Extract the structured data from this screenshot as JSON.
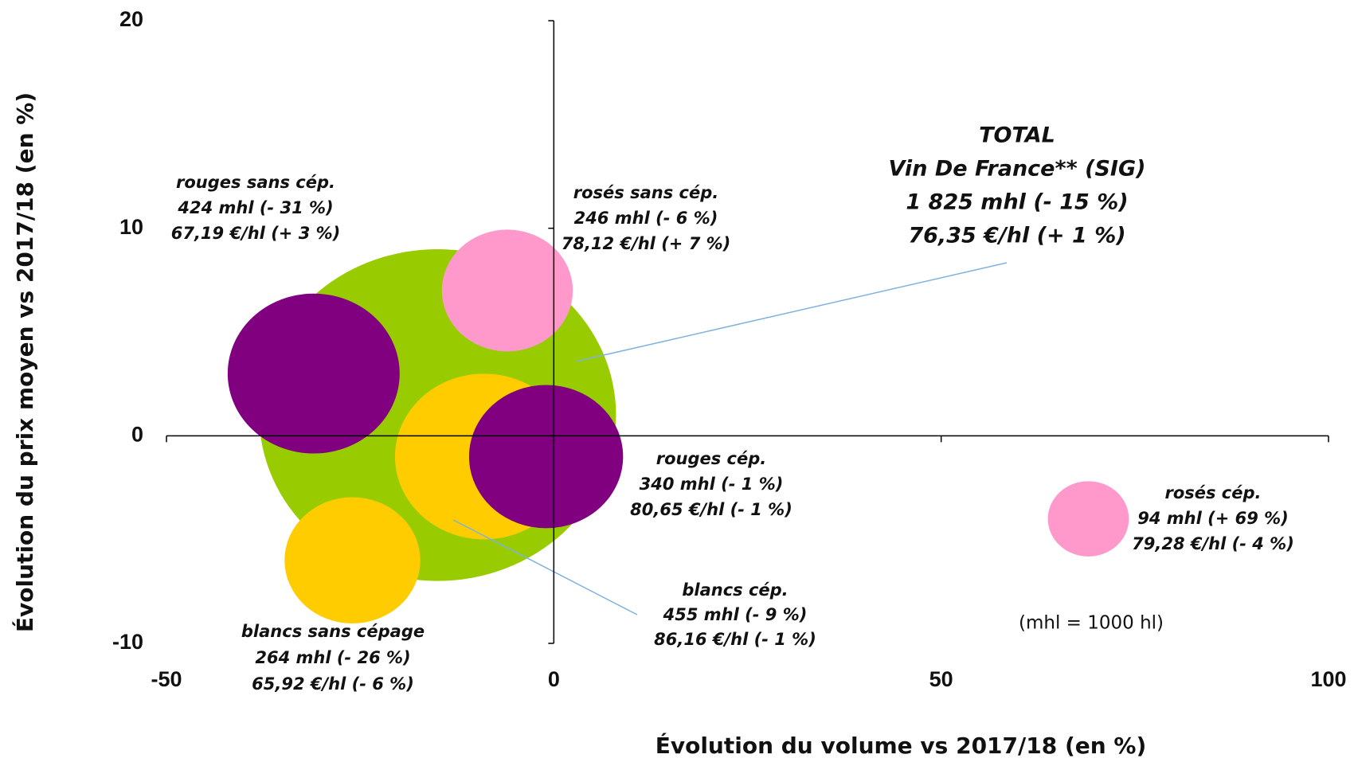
{
  "chart_data": {
    "type": "bubble",
    "xlabel": "Évolution du volume vs 2017/18 (en %)",
    "ylabel": "Évolution du prix moyen vs 2017/18 (en %)",
    "xlim": [
      -50,
      100
    ],
    "xticks": [
      -50,
      0,
      50,
      100
    ],
    "ylim": [
      -10,
      20
    ],
    "yticks": [
      -10,
      0,
      10,
      20
    ],
    "annotation": "(mhl = 1000 hl)",
    "points": [
      {
        "name": "TOTAL",
        "subname": "Vin De France** (SIG)",
        "color": "#99cc00",
        "x": -15,
        "y": 1,
        "size": 1825,
        "volume_label": "1 825 mhl (- 15 %)",
        "price_label": "76,35 €/hl (+ 1 %)"
      },
      {
        "name": "rosés sans cép.",
        "color": "#ff99cc",
        "x": -6,
        "y": 7,
        "size": 246,
        "volume_label": "246 mhl (- 6 %)",
        "price_label": "78,12  €/hl (+ 7 %)"
      },
      {
        "name": "rouges sans cép.",
        "color": "#800080",
        "x": -31,
        "y": 3,
        "size": 424,
        "volume_label": "424 mhl (- 31 %)",
        "price_label": "67,19 €/hl (+ 3 %)"
      },
      {
        "name": "blancs cép.",
        "color": "#ffcc00",
        "x": -9,
        "y": -1,
        "size": 455,
        "volume_label": "455 mhl (- 9 %)",
        "price_label": "86,16 €/hl (- 1 %)"
      },
      {
        "name": "rouges cép.",
        "color": "#800080",
        "x": -1,
        "y": -1,
        "size": 340,
        "volume_label": "340 mhl (- 1 %)",
        "price_label": "80,65 €/hl (- 1 %)"
      },
      {
        "name": "blancs sans cépage",
        "color": "#ffcc00",
        "x": -26,
        "y": -6,
        "size": 264,
        "volume_label": "264 mhl (- 26 %)",
        "price_label": "65,92 €/hl (- 6 %)"
      },
      {
        "name": "rosés cép.",
        "color": "#ff99cc",
        "x": 69,
        "y": -4,
        "size": 94,
        "volume_label": "94 mhl (+ 69 %)",
        "price_label": "79,28 €/hl (- 4 %)"
      }
    ]
  }
}
